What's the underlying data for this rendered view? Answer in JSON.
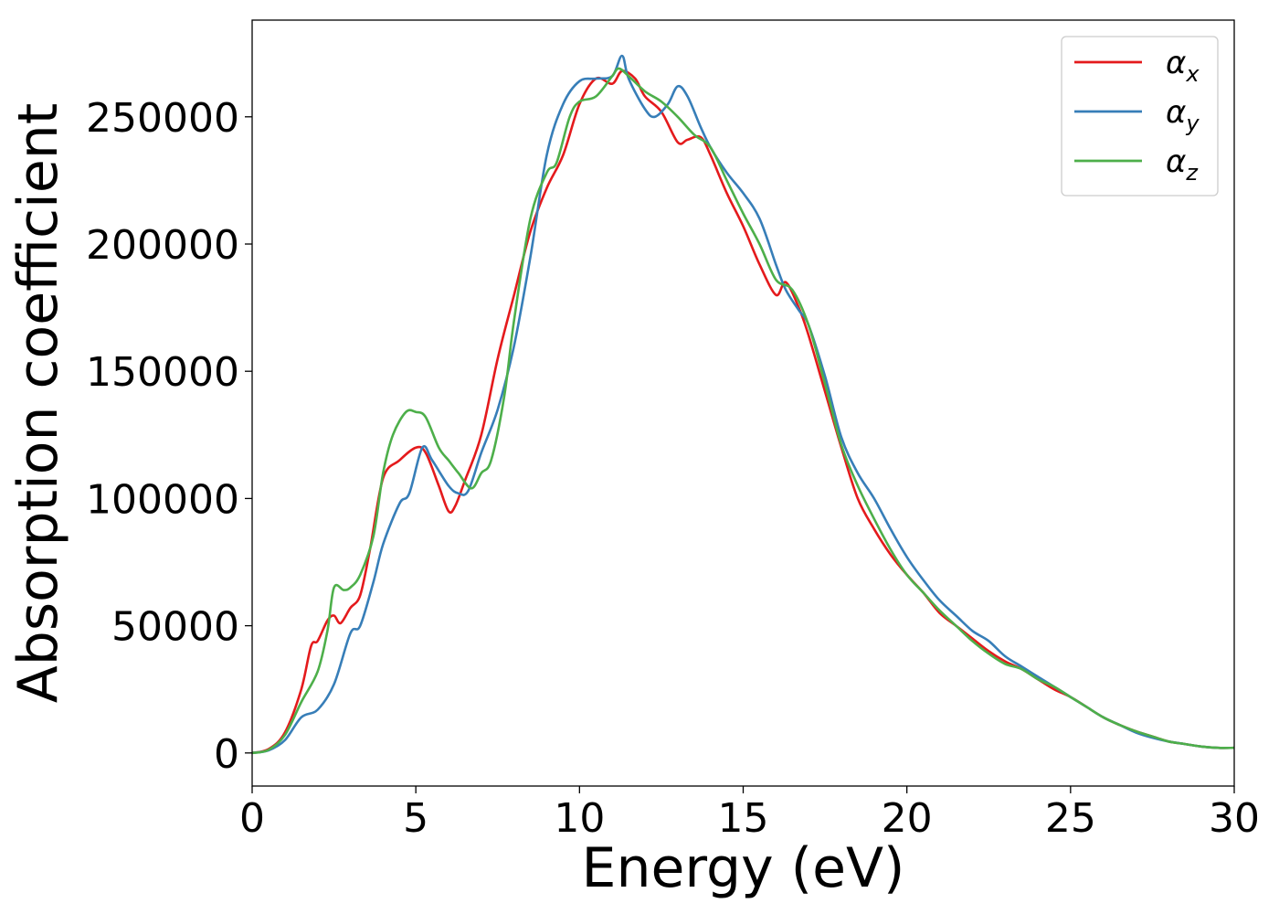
{
  "chart_data": {
    "type": "line",
    "xlabel": "Energy (eV)",
    "ylabel": "Absorption coefficient",
    "xlim": [
      0,
      30
    ],
    "ylim": [
      -13000,
      288000
    ],
    "xticks": [
      0,
      5,
      10,
      15,
      20,
      25,
      30
    ],
    "yticks": [
      0,
      50000,
      100000,
      150000,
      200000,
      250000
    ],
    "grid": false,
    "legend_position": "top-right",
    "series": [
      {
        "name": "αx",
        "color": "#e41a1c",
        "x": [
          0,
          0.5,
          1,
          1.5,
          1.8,
          2,
          2.3,
          2.5,
          2.7,
          3,
          3.3,
          3.6,
          4,
          4.5,
          5,
          5.3,
          5.7,
          6,
          6.2,
          6.5,
          7,
          7.5,
          8,
          8.5,
          9,
          9.5,
          10,
          10.5,
          11,
          11.3,
          11.7,
          12,
          12.5,
          13,
          13.3,
          13.7,
          14,
          14.5,
          15,
          15.5,
          16,
          16.3,
          16.7,
          17,
          17.5,
          18,
          18.5,
          19,
          19.5,
          20,
          20.5,
          21,
          21.5,
          22,
          22.5,
          23,
          23.5,
          24,
          24.5,
          25,
          25.5,
          26,
          26.5,
          27,
          27.5,
          28,
          28.5,
          29,
          29.5,
          30
        ],
        "y": [
          0,
          1500,
          8000,
          25000,
          42000,
          44000,
          52000,
          54000,
          51000,
          57000,
          62000,
          80000,
          108000,
          115000,
          120000,
          118000,
          105000,
          95000,
          97000,
          107000,
          125000,
          155000,
          180000,
          205000,
          222000,
          235000,
          255000,
          265000,
          263000,
          268000,
          265000,
          258000,
          252000,
          240000,
          241000,
          242000,
          235000,
          220000,
          207000,
          192000,
          180000,
          185000,
          175000,
          164000,
          142000,
          120000,
          100000,
          88000,
          78000,
          70000,
          63000,
          55000,
          50000,
          45000,
          40000,
          36000,
          33000,
          29000,
          25000,
          22000,
          18000,
          14000,
          11000,
          8500,
          6500,
          4500,
          3500,
          2500,
          2000,
          2000
        ]
      },
      {
        "name": "αy",
        "color": "#377eb8",
        "x": [
          0,
          0.5,
          1,
          1.5,
          2,
          2.5,
          3,
          3.3,
          3.7,
          4,
          4.5,
          4.8,
          5.2,
          5.5,
          6,
          6.3,
          6.6,
          7,
          7.5,
          8,
          8.5,
          9,
          9.5,
          10,
          10.5,
          11,
          11.3,
          11.5,
          12,
          12.3,
          12.7,
          13,
          13.3,
          13.7,
          14,
          14.5,
          15,
          15.5,
          16,
          16.3,
          16.7,
          17,
          17.5,
          18,
          18.5,
          19,
          19.5,
          20,
          20.5,
          21,
          21.5,
          22,
          22.5,
          23,
          23.5,
          24,
          24.5,
          25,
          25.5,
          26,
          26.5,
          27,
          27.5,
          28,
          28.5,
          29,
          29.5,
          30
        ],
        "y": [
          0,
          1000,
          5000,
          14000,
          17000,
          27000,
          47000,
          50000,
          67000,
          82000,
          98000,
          102000,
          120000,
          115000,
          105000,
          102000,
          103000,
          118000,
          135000,
          160000,
          195000,
          235000,
          255000,
          264000,
          265000,
          266000,
          274000,
          265000,
          253000,
          250000,
          255000,
          262000,
          258000,
          246000,
          238000,
          228000,
          220000,
          210000,
          192000,
          182000,
          174000,
          168000,
          148000,
          124000,
          110000,
          100000,
          88000,
          77000,
          68000,
          60000,
          54000,
          48000,
          44000,
          38000,
          34000,
          30000,
          26000,
          22000,
          18000,
          14000,
          11000,
          8000,
          6000,
          4500,
          3500,
          2500,
          2000,
          2000
        ]
      },
      {
        "name": "αz",
        "color": "#4daf4a",
        "x": [
          0,
          0.5,
          1,
          1.5,
          2,
          2.3,
          2.5,
          2.8,
          3,
          3.3,
          3.7,
          4,
          4.3,
          4.7,
          5,
          5.3,
          5.7,
          6,
          6.3,
          6.7,
          7,
          7.3,
          7.7,
          8,
          8.5,
          9,
          9.3,
          9.7,
          10,
          10.5,
          11,
          11.2,
          11.5,
          12,
          12.5,
          13,
          13.5,
          14,
          14.5,
          15,
          15.5,
          16,
          16.5,
          17,
          17.5,
          18,
          18.5,
          19,
          19.5,
          20,
          20.5,
          21,
          21.5,
          22,
          22.5,
          23,
          23.5,
          24,
          24.5,
          25,
          25.5,
          26,
          26.5,
          27,
          27.5,
          28,
          28.5,
          29,
          29.5,
          30
        ],
        "y": [
          0,
          1200,
          7000,
          20000,
          32000,
          48000,
          65000,
          64000,
          65000,
          70000,
          85000,
          110000,
          125000,
          134000,
          134000,
          132000,
          120000,
          115000,
          110000,
          104000,
          110000,
          115000,
          140000,
          170000,
          210000,
          228000,
          232000,
          250000,
          256000,
          258000,
          266000,
          269000,
          266000,
          260000,
          256000,
          250000,
          243000,
          238000,
          225000,
          212000,
          200000,
          186000,
          182000,
          168000,
          145000,
          121000,
          105000,
          92000,
          80000,
          70000,
          63000,
          56000,
          50000,
          44000,
          39000,
          35000,
          33000,
          29000,
          26000,
          22000,
          18000,
          14000,
          11000,
          8500,
          6500,
          4500,
          3500,
          2500,
          2000,
          2000
        ]
      }
    ]
  }
}
